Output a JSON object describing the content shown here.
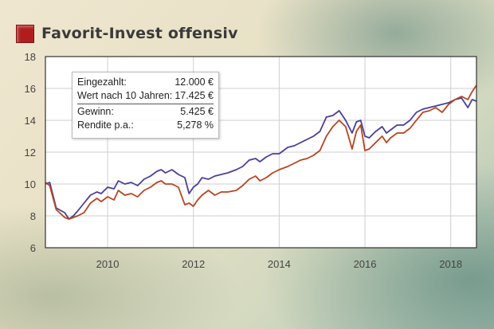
{
  "title": "Favorit-Invest offensiv",
  "colors": {
    "series_blue": "#4a3f9a",
    "series_red": "#b8441f",
    "title_icon": "#b11d1f"
  },
  "info_box": {
    "rows_top": [
      {
        "label": "Eingezahlt:",
        "value": "12.000 €"
      },
      {
        "label": "Wert nach 10 Jahren:",
        "value": "17.425 €"
      }
    ],
    "rows_bottom": [
      {
        "label": "Gewinn:",
        "value": "5.425 €"
      },
      {
        "label": "Rendite p.a.:",
        "value": "5,278 %"
      }
    ]
  },
  "chart_data": {
    "type": "line",
    "title": "Favorit-Invest offensiv",
    "xlabel": "",
    "ylabel": "",
    "xlim": [
      2008.55,
      2018.6
    ],
    "ylim": [
      6,
      18
    ],
    "x_ticks": [
      2010,
      2012,
      2014,
      2016,
      2018
    ],
    "y_ticks": [
      6,
      8,
      10,
      12,
      14,
      16,
      18
    ],
    "grid": true,
    "series": [
      {
        "color": "#4a3f9a",
        "x": [
          2008.55,
          2008.65,
          2008.8,
          2009.0,
          2009.1,
          2009.2,
          2009.3,
          2009.45,
          2009.6,
          2009.75,
          2009.85,
          2010.0,
          2010.15,
          2010.25,
          2010.4,
          2010.55,
          2010.7,
          2010.85,
          2011.0,
          2011.15,
          2011.25,
          2011.35,
          2011.5,
          2011.65,
          2011.8,
          2011.9,
          2012.0,
          2012.1,
          2012.2,
          2012.35,
          2012.5,
          2012.65,
          2012.8,
          2013.0,
          2013.15,
          2013.3,
          2013.45,
          2013.55,
          2013.7,
          2013.85,
          2014.0,
          2014.1,
          2014.2,
          2014.35,
          2014.5,
          2014.65,
          2014.8,
          2014.95,
          2015.1,
          2015.25,
          2015.4,
          2015.55,
          2015.7,
          2015.8,
          2015.9,
          2016.0,
          2016.1,
          2016.25,
          2016.4,
          2016.5,
          2016.6,
          2016.75,
          2016.9,
          2017.05,
          2017.2,
          2017.35,
          2017.5,
          2017.65,
          2017.8,
          2017.95,
          2018.1,
          2018.25,
          2018.4,
          2018.5,
          2018.6
        ],
        "y": [
          10.0,
          10.1,
          8.5,
          8.2,
          7.8,
          8.0,
          8.3,
          8.8,
          9.3,
          9.5,
          9.4,
          9.8,
          9.7,
          10.2,
          10.0,
          10.1,
          9.9,
          10.3,
          10.5,
          10.8,
          10.9,
          10.7,
          10.9,
          10.6,
          10.4,
          9.4,
          9.8,
          10.0,
          10.4,
          10.3,
          10.5,
          10.6,
          10.7,
          10.9,
          11.1,
          11.5,
          11.6,
          11.4,
          11.7,
          11.9,
          11.9,
          12.1,
          12.3,
          12.4,
          12.6,
          12.8,
          13.0,
          13.3,
          14.2,
          14.3,
          14.6,
          14.0,
          13.2,
          13.9,
          14.0,
          13.0,
          12.9,
          13.3,
          13.6,
          13.2,
          13.4,
          13.7,
          13.7,
          14.0,
          14.5,
          14.7,
          14.8,
          14.9,
          15.0,
          15.1,
          15.3,
          15.4,
          14.8,
          15.3,
          15.2
        ]
      },
      {
        "color": "#b8441f",
        "x": [
          2008.55,
          2008.65,
          2008.8,
          2009.0,
          2009.1,
          2009.2,
          2009.3,
          2009.45,
          2009.6,
          2009.75,
          2009.85,
          2010.0,
          2010.15,
          2010.25,
          2010.4,
          2010.55,
          2010.7,
          2010.85,
          2011.0,
          2011.15,
          2011.25,
          2011.35,
          2011.5,
          2011.65,
          2011.8,
          2011.9,
          2012.0,
          2012.1,
          2012.2,
          2012.35,
          2012.5,
          2012.65,
          2012.8,
          2013.0,
          2013.15,
          2013.3,
          2013.45,
          2013.55,
          2013.7,
          2013.85,
          2014.0,
          2014.1,
          2014.2,
          2014.35,
          2014.5,
          2014.65,
          2014.8,
          2014.95,
          2015.1,
          2015.25,
          2015.4,
          2015.55,
          2015.7,
          2015.8,
          2015.9,
          2016.0,
          2016.1,
          2016.25,
          2016.4,
          2016.5,
          2016.6,
          2016.75,
          2016.9,
          2017.05,
          2017.2,
          2017.35,
          2017.5,
          2017.65,
          2017.8,
          2017.95,
          2018.1,
          2018.25,
          2018.4,
          2018.5,
          2018.6
        ],
        "y": [
          10.1,
          9.9,
          8.4,
          7.9,
          7.8,
          7.9,
          8.0,
          8.2,
          8.8,
          9.1,
          8.9,
          9.2,
          9.0,
          9.6,
          9.3,
          9.4,
          9.2,
          9.6,
          9.8,
          10.1,
          10.2,
          10.0,
          10.0,
          9.8,
          8.7,
          8.8,
          8.6,
          9.0,
          9.3,
          9.6,
          9.3,
          9.5,
          9.5,
          9.6,
          9.9,
          10.3,
          10.5,
          10.2,
          10.4,
          10.7,
          10.9,
          11.0,
          11.1,
          11.3,
          11.5,
          11.6,
          11.8,
          12.1,
          13.0,
          13.6,
          14.0,
          13.6,
          12.2,
          13.3,
          13.7,
          12.1,
          12.2,
          12.6,
          13.0,
          12.6,
          12.9,
          13.2,
          13.2,
          13.5,
          14.0,
          14.5,
          14.6,
          14.8,
          14.5,
          15.0,
          15.3,
          15.5,
          15.3,
          15.8,
          16.2
        ]
      }
    ]
  }
}
